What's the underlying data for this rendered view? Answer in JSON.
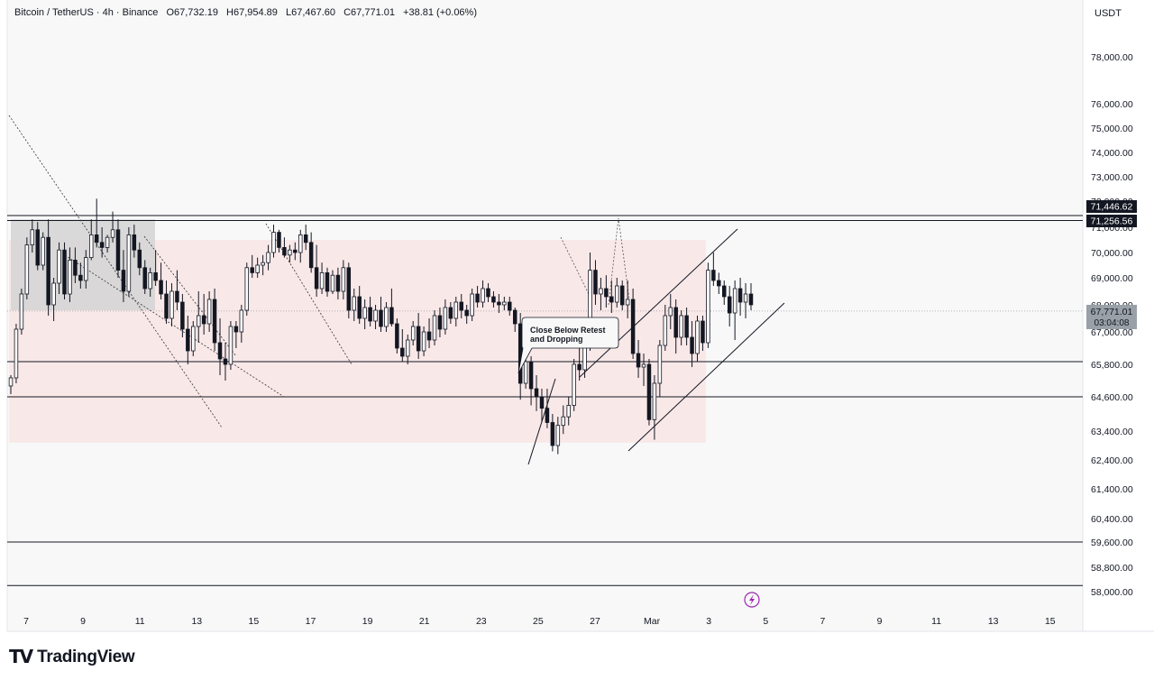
{
  "header": {
    "symbol": "Bitcoin / TetherUS · 4h · Binance",
    "open": "O67,732.19",
    "high": "H67,954.89",
    "low": "L67,467.60",
    "close": "C67,771.01",
    "change": "+38.81 (+0.06%)"
  },
  "price_axis": {
    "currency": "USDT"
  },
  "branding": {
    "name": "TradingView"
  },
  "colors": {
    "candle": "#131722",
    "zone": "#f8e6e6",
    "gray_zone": "#d4d4d4",
    "flash_icon": "#9c27b0"
  },
  "icons": {
    "alert": "flash-icon",
    "logo": "tradingview-logo-icon"
  },
  "chart_data": {
    "type": "candlestick",
    "symbol": "BTCUSDT",
    "interval": "4h",
    "x_ticks": [
      "7",
      "9",
      "11",
      "13",
      "15",
      "17",
      "19",
      "21",
      "23",
      "25",
      "27",
      "Mar",
      "3",
      "5",
      "7",
      "9",
      "11",
      "13",
      "15"
    ],
    "y_ticks": [
      "78,000.00",
      "76,000.00",
      "75,000.00",
      "74,000.00",
      "73,000.00",
      "72,000.00",
      "71,000.00",
      "70,000.00",
      "69,000.00",
      "68,000.00",
      "67,000.00",
      "65,800.00",
      "64,600.00",
      "63,400.00",
      "62,400.00",
      "61,400.00",
      "60,400.00",
      "59,600.00",
      "58,800.00",
      "58,000.00"
    ],
    "y_tick_values": [
      78000,
      76000,
      75000,
      74000,
      73000,
      72000,
      71000,
      70000,
      69000,
      68000,
      67000,
      65800,
      64600,
      63400,
      62400,
      61400,
      60400,
      59600,
      58800,
      58000
    ],
    "price_labels": [
      {
        "text": "71,446.62",
        "value": 71446.62,
        "style": "dark"
      },
      {
        "text": "71,256.56",
        "value": 71256.56,
        "style": "dark"
      },
      {
        "text": "67,771.01",
        "value": 67771.01,
        "style": "gray"
      },
      {
        "text": "03:04:08",
        "value": 67771.01,
        "style": "gray-sub"
      }
    ],
    "horizontal_lines": [
      71446.62,
      71256.56,
      65900,
      64600,
      59600,
      58200
    ],
    "zones": [
      {
        "x_start": "7",
        "x_end": "Mar",
        "y_low": 63000,
        "y_high": 70500,
        "color": "pink"
      },
      {
        "x_start": "6",
        "x_end": "11",
        "y_low": 67800,
        "y_high": 71300,
        "color": "gray"
      }
    ],
    "annotation": "Close Below Retest\nand Dropping",
    "candles": [
      [
        65000,
        65400,
        64700,
        65300
      ],
      [
        65300,
        67300,
        65100,
        67100
      ],
      [
        67100,
        68600,
        66900,
        68400
      ],
      [
        68400,
        70600,
        68200,
        70300
      ],
      [
        70300,
        71300,
        70000,
        70900
      ],
      [
        70900,
        71200,
        69300,
        69500
      ],
      [
        69500,
        70800,
        69300,
        70600
      ],
      [
        70600,
        71300,
        67600,
        68000
      ],
      [
        68000,
        69000,
        67400,
        68800
      ],
      [
        68800,
        70400,
        68400,
        70100
      ],
      [
        70100,
        70400,
        68200,
        68400
      ],
      [
        68400,
        70200,
        68100,
        69700
      ],
      [
        69700,
        70200,
        68800,
        69100
      ],
      [
        69100,
        69600,
        68600,
        68900
      ],
      [
        68900,
        70100,
        68600,
        69800
      ],
      [
        69800,
        71300,
        69700,
        70700
      ],
      [
        70700,
        72100,
        70200,
        70400
      ],
      [
        70400,
        71000,
        69800,
        70200
      ],
      [
        70200,
        70700,
        70000,
        70600
      ],
      [
        70600,
        71600,
        70400,
        70900
      ],
      [
        70900,
        71300,
        69000,
        69300
      ],
      [
        69300,
        70100,
        68100,
        68500
      ],
      [
        68500,
        71000,
        68300,
        70700
      ],
      [
        70700,
        71100,
        69800,
        70100
      ],
      [
        70100,
        70400,
        69100,
        69400
      ],
      [
        69400,
        69700,
        68400,
        68600
      ],
      [
        68600,
        69400,
        68300,
        69200
      ],
      [
        69200,
        70100,
        68700,
        68900
      ],
      [
        68900,
        69600,
        68200,
        68400
      ],
      [
        68400,
        68900,
        67300,
        67500
      ],
      [
        67500,
        68800,
        67200,
        68500
      ],
      [
        68500,
        69300,
        67800,
        68100
      ],
      [
        68100,
        68400,
        66800,
        67100
      ],
      [
        67100,
        67600,
        65800,
        66300
      ],
      [
        66300,
        67400,
        66100,
        67200
      ],
      [
        67200,
        68500,
        66600,
        67600
      ],
      [
        67600,
        68400,
        66900,
        67300
      ],
      [
        67300,
        68500,
        67000,
        68200
      ],
      [
        68200,
        68600,
        66300,
        66600
      ],
      [
        66600,
        67500,
        65400,
        66000
      ],
      [
        66000,
        66600,
        65200,
        65800
      ],
      [
        65800,
        67400,
        65600,
        67200
      ],
      [
        67200,
        67400,
        66400,
        67000
      ],
      [
        67000,
        68000,
        66600,
        67800
      ],
      [
        67800,
        69600,
        67600,
        69400
      ],
      [
        69400,
        69900,
        69000,
        69200
      ],
      [
        69200,
        69800,
        69000,
        69500
      ],
      [
        69500,
        69900,
        69100,
        69600
      ],
      [
        69600,
        70300,
        69300,
        70000
      ],
      [
        70000,
        71100,
        69800,
        70800
      ],
      [
        70800,
        70900,
        70000,
        70200
      ],
      [
        70200,
        70600,
        69800,
        69900
      ],
      [
        69900,
        70300,
        69600,
        70100
      ],
      [
        70100,
        70400,
        69700,
        70000
      ],
      [
        70000,
        70900,
        69600,
        70700
      ],
      [
        70700,
        71100,
        70100,
        70400
      ],
      [
        70400,
        70800,
        69200,
        69400
      ],
      [
        69400,
        70300,
        68300,
        68600
      ],
      [
        68600,
        69600,
        68400,
        69200
      ],
      [
        69200,
        69400,
        68300,
        68500
      ],
      [
        68500,
        69300,
        68400,
        69100
      ],
      [
        69100,
        69400,
        68200,
        68500
      ],
      [
        68500,
        69700,
        68200,
        69400
      ],
      [
        69400,
        69600,
        67500,
        67800
      ],
      [
        67800,
        68600,
        67400,
        68300
      ],
      [
        68300,
        68700,
        67300,
        67500
      ],
      [
        67500,
        68200,
        67100,
        67900
      ],
      [
        67900,
        68300,
        67200,
        67400
      ],
      [
        67400,
        68000,
        67100,
        67800
      ],
      [
        67800,
        68300,
        67000,
        67200
      ],
      [
        67200,
        68100,
        67000,
        67900
      ],
      [
        67900,
        68600,
        67200,
        67300
      ],
      [
        67300,
        67500,
        66200,
        66400
      ],
      [
        66400,
        67100,
        65900,
        66100
      ],
      [
        66100,
        66900,
        65800,
        66700
      ],
      [
        66700,
        67400,
        66500,
        67200
      ],
      [
        67200,
        67700,
        66000,
        66300
      ],
      [
        66300,
        67200,
        66100,
        67000
      ],
      [
        67000,
        67500,
        66400,
        66700
      ],
      [
        66700,
        67800,
        66500,
        67600
      ],
      [
        67600,
        67900,
        66800,
        67100
      ],
      [
        67100,
        68200,
        66900,
        67900
      ],
      [
        67900,
        68100,
        67300,
        67500
      ],
      [
        67500,
        68300,
        67200,
        68100
      ],
      [
        68100,
        68400,
        67500,
        67800
      ],
      [
        67800,
        68000,
        67300,
        67600
      ],
      [
        67600,
        68600,
        67400,
        68400
      ],
      [
        68400,
        68700,
        67900,
        68100
      ],
      [
        68100,
        68900,
        67900,
        68600
      ],
      [
        68600,
        68800,
        68100,
        68300
      ],
      [
        68300,
        68500,
        67900,
        68100
      ],
      [
        68100,
        68400,
        67700,
        68000
      ],
      [
        68000,
        68300,
        67800,
        68100
      ],
      [
        68100,
        68300,
        67600,
        67800
      ],
      [
        67800,
        67900,
        67000,
        67300
      ],
      [
        67300,
        67700,
        64500,
        65100
      ],
      [
        65100,
        66100,
        64900,
        65900
      ],
      [
        65900,
        66100,
        64300,
        64900
      ],
      [
        64900,
        65400,
        64100,
        64600
      ],
      [
        64600,
        64900,
        63700,
        64200
      ],
      [
        64200,
        64900,
        63500,
        63700
      ],
      [
        63700,
        64000,
        62700,
        62900
      ],
      [
        62900,
        63900,
        62600,
        63600
      ],
      [
        63600,
        64300,
        63300,
        63900
      ],
      [
        63900,
        64600,
        63600,
        64300
      ],
      [
        64300,
        66000,
        64100,
        65800
      ],
      [
        65800,
        66400,
        65200,
        65600
      ],
      [
        65600,
        66800,
        65300,
        66500
      ],
      [
        66500,
        70000,
        66300,
        69300
      ],
      [
        69300,
        69700,
        68000,
        68400
      ],
      [
        68400,
        69000,
        67800,
        68600
      ],
      [
        68600,
        69100,
        67900,
        68300
      ],
      [
        68300,
        68900,
        67700,
        68100
      ],
      [
        68100,
        69000,
        67900,
        68700
      ],
      [
        68700,
        68900,
        67800,
        68000
      ],
      [
        68000,
        68900,
        67500,
        68200
      ],
      [
        68200,
        68600,
        66000,
        66200
      ],
      [
        66200,
        66700,
        65300,
        65700
      ],
      [
        65700,
        66200,
        65000,
        65800
      ],
      [
        65800,
        66000,
        63600,
        63800
      ],
      [
        63800,
        65400,
        63100,
        65100
      ],
      [
        65100,
        66700,
        64600,
        66500
      ],
      [
        66500,
        68000,
        66300,
        67600
      ],
      [
        67600,
        68400,
        67100,
        67900
      ],
      [
        67900,
        68200,
        66200,
        66800
      ],
      [
        66800,
        67800,
        66500,
        67600
      ],
      [
        67600,
        67900,
        66500,
        66800
      ],
      [
        66800,
        67400,
        65700,
        66200
      ],
      [
        66200,
        67600,
        65900,
        67400
      ],
      [
        67400,
        67600,
        66300,
        66600
      ],
      [
        66600,
        69600,
        66400,
        69300
      ],
      [
        69300,
        70000,
        68700,
        68900
      ],
      [
        68900,
        69200,
        68400,
        68700
      ],
      [
        68700,
        68900,
        68000,
        68300
      ],
      [
        68300,
        68700,
        67200,
        67700
      ],
      [
        67700,
        68900,
        66700,
        68600
      ],
      [
        68600,
        69000,
        67600,
        68100
      ],
      [
        68100,
        68800,
        67500,
        68400
      ],
      [
        68400,
        68800,
        67800,
        68000
      ]
    ]
  }
}
